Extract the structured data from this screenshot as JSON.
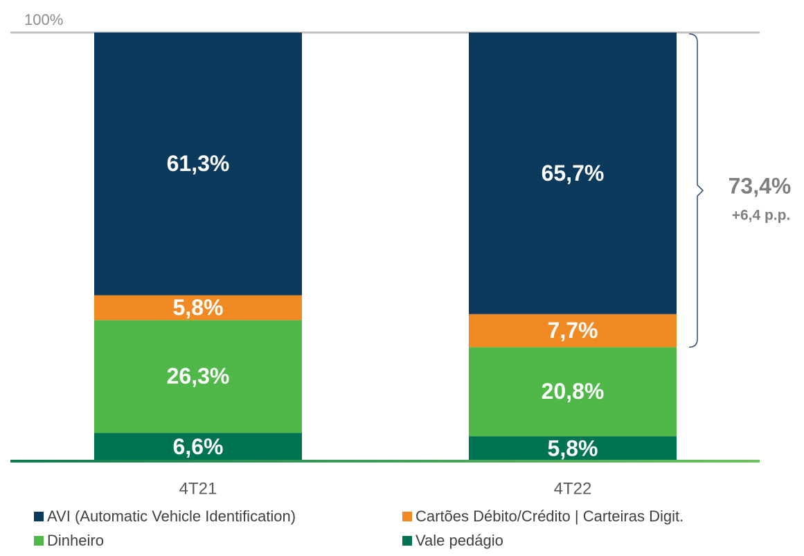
{
  "chart_data": {
    "type": "stacked_bar",
    "categories": [
      "4T21",
      "4T22"
    ],
    "series": [
      {
        "name": "AVI (Automatic Vehicle Identification)",
        "color": "#0b3a5d",
        "values": [
          61.3,
          65.7
        ],
        "value_labels": [
          "61,3%",
          "65,7%"
        ]
      },
      {
        "name": "Cartões Débito/Crédito | Carteiras Digit.",
        "color": "#f28a24",
        "values": [
          5.8,
          7.7
        ],
        "value_labels": [
          "5,8%",
          "7,7%"
        ]
      },
      {
        "name": "Dinheiro",
        "color": "#4fb848",
        "values": [
          26.3,
          20.8
        ],
        "value_labels": [
          "26,3%",
          "20,8%"
        ]
      },
      {
        "name": "Vale pedágio",
        "color": "#007352",
        "values": [
          6.6,
          5.8
        ],
        "value_labels": [
          "6,6%",
          "5,8%"
        ]
      }
    ],
    "stack_order": "bottom_up_from_last",
    "ylim": [
      0,
      100
    ],
    "yticks": [
      {
        "value": 100,
        "label": "100%"
      }
    ],
    "annotations": [
      {
        "text": "73,4%"
      },
      {
        "text": "+6,4 p.p."
      }
    ]
  }
}
